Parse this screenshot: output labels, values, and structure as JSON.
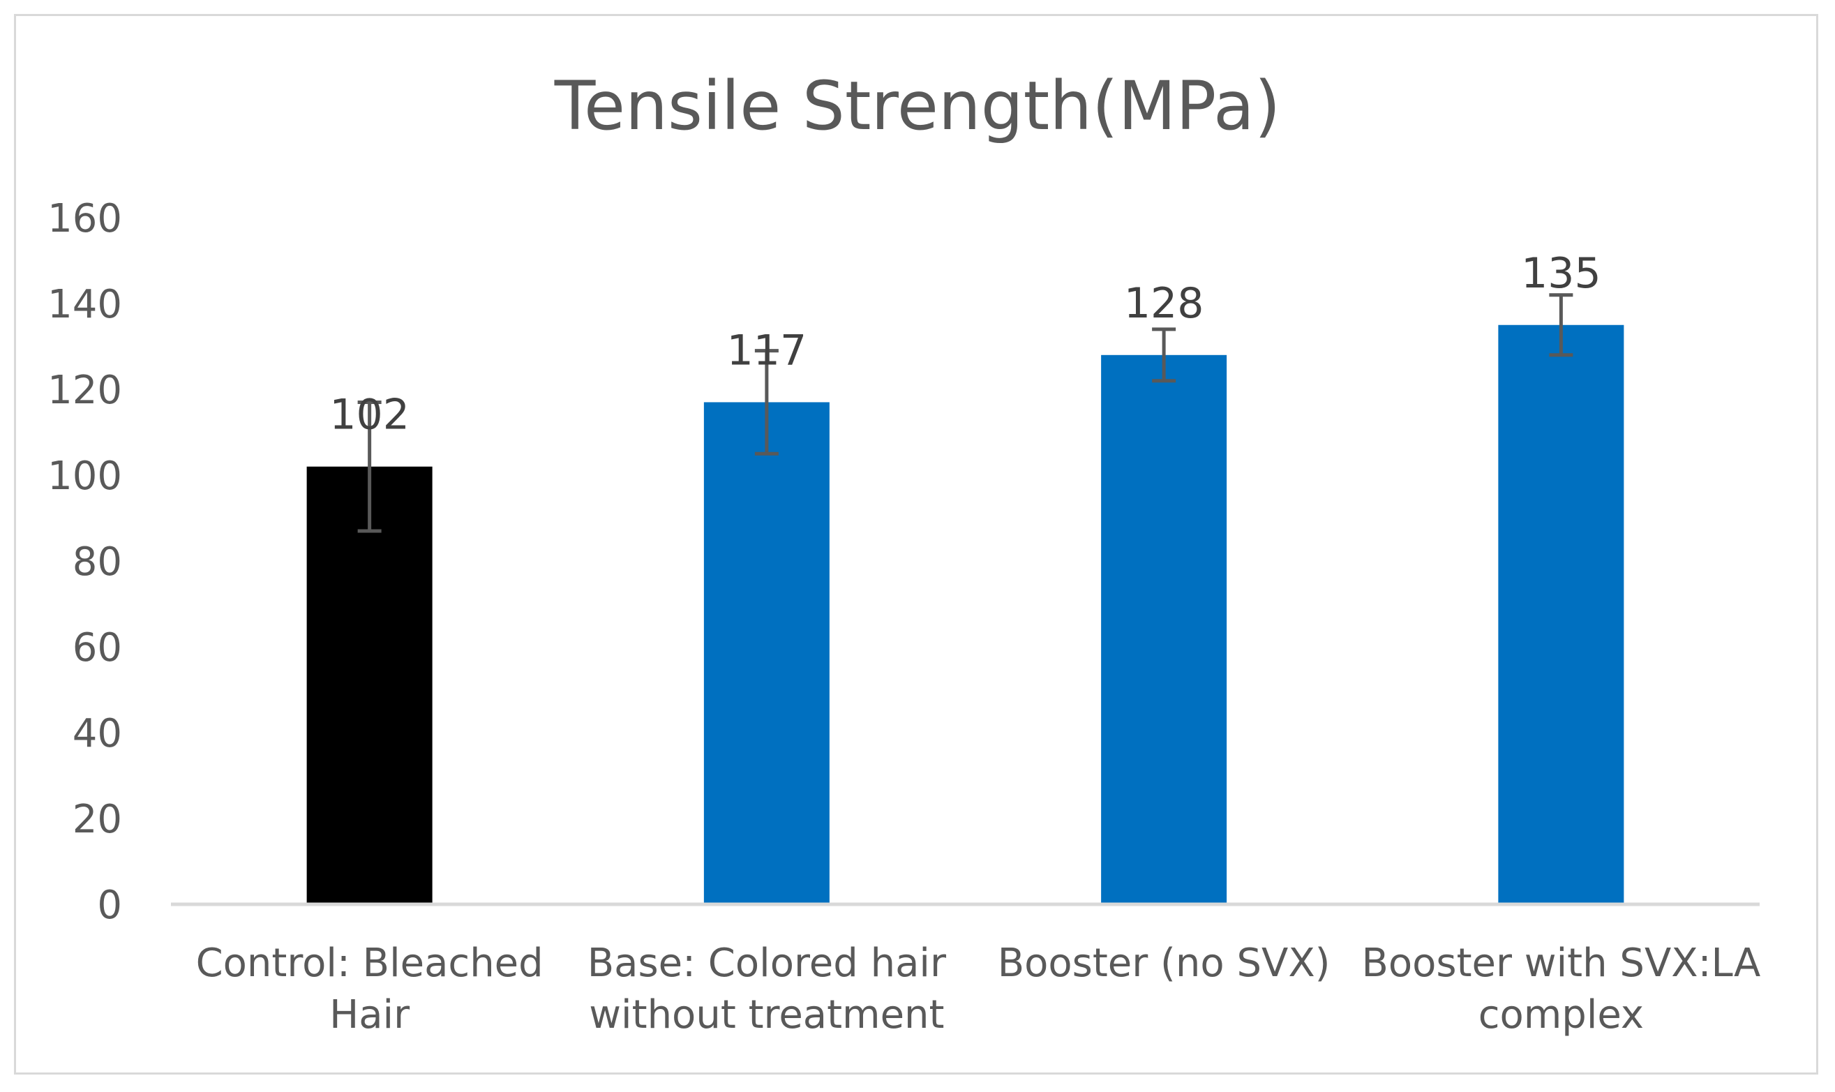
{
  "chart_data": {
    "type": "bar",
    "title": "Tensile Strength(MPa)",
    "xlabel": "",
    "ylabel": "",
    "ylim": [
      0,
      160
    ],
    "yticks": [
      0,
      20,
      40,
      60,
      80,
      100,
      120,
      140,
      160
    ],
    "grid": false,
    "legend": "none",
    "categories": [
      [
        "Control: Bleached",
        "Hair"
      ],
      [
        "Base: Colored hair",
        "without treatment"
      ],
      [
        "Booster (no SVX)"
      ],
      [
        "Booster with SVX:LA",
        "complex"
      ]
    ],
    "values": [
      102,
      117,
      128,
      135
    ],
    "error": [
      15,
      12,
      6,
      7
    ],
    "data_labels": [
      "102",
      "117",
      "128",
      "135"
    ],
    "bar_colors": [
      "#000000",
      "#0070c0",
      "#0070c0",
      "#0070c0"
    ],
    "error_bar_color": "#595959",
    "axis_color": "#d9d9d9"
  }
}
